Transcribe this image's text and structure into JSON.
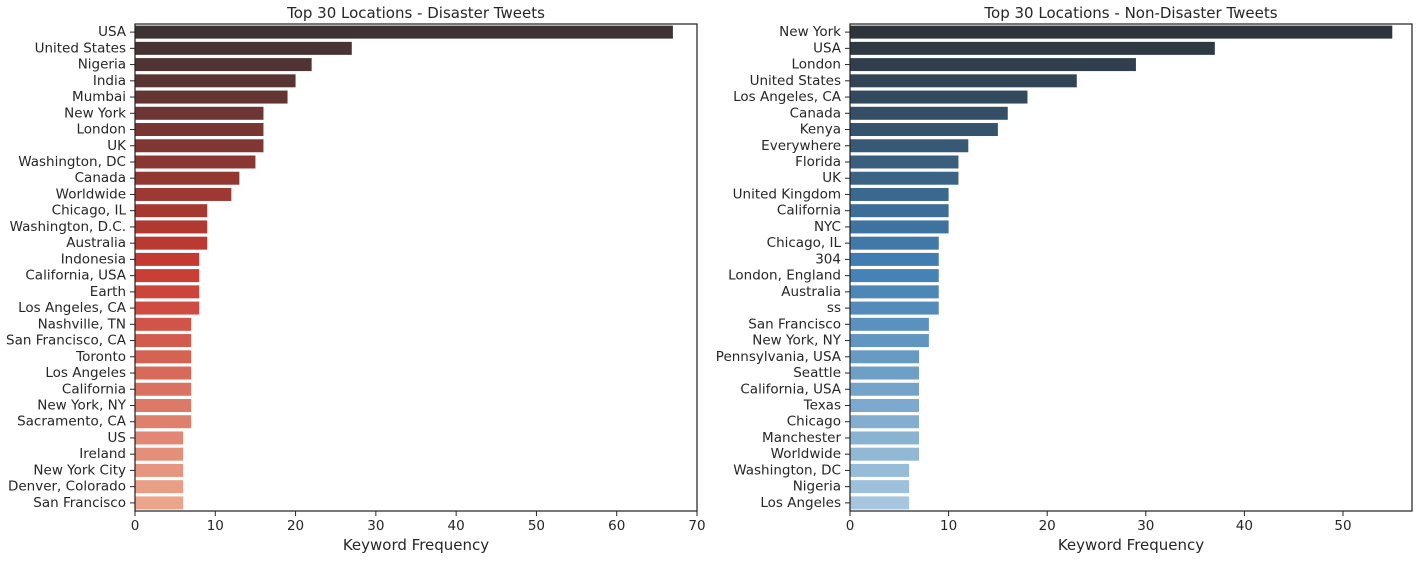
{
  "chart_data": [
    {
      "type": "bar",
      "orientation": "horizontal",
      "title": "Top 30 Locations - Disaster Tweets",
      "xlabel": "Keyword Frequency",
      "ylabel": "",
      "xlim": [
        0,
        70
      ],
      "xticks": [
        0,
        10,
        20,
        30,
        40,
        50,
        60,
        70
      ],
      "grid": false,
      "palette": "reds_dark",
      "categories": [
        "USA",
        "United States",
        "Nigeria",
        "India",
        "Mumbai",
        "New York",
        "London",
        "UK",
        "Washington, DC",
        "Canada",
        "Worldwide",
        "Chicago, IL",
        "Washington, D.C.",
        "Australia",
        "Indonesia",
        "California, USA",
        "Earth",
        "Los Angeles, CA",
        "Nashville, TN",
        "San Francisco, CA",
        "Toronto",
        "Los Angeles",
        "California",
        "New York, NY",
        "Sacramento, CA",
        "US",
        "Ireland",
        "New York City",
        "Denver, Colorado",
        "San Francisco"
      ],
      "values": [
        67,
        27,
        22,
        20,
        19,
        16,
        16,
        16,
        15,
        13,
        12,
        9,
        9,
        9,
        8,
        8,
        8,
        8,
        7,
        7,
        7,
        7,
        7,
        7,
        7,
        6,
        6,
        6,
        6,
        6
      ]
    },
    {
      "type": "bar",
      "orientation": "horizontal",
      "title": "Top 30 Locations - Non-Disaster Tweets",
      "xlabel": "Keyword Frequency",
      "ylabel": "",
      "xlim": [
        0,
        57
      ],
      "xticks": [
        0,
        10,
        20,
        30,
        40,
        50
      ],
      "grid": false,
      "palette": "blues_dark",
      "categories": [
        "New York",
        "USA",
        "London",
        "United States",
        "Los Angeles, CA",
        "Canada",
        "Kenya",
        "Everywhere",
        "Florida",
        "UK",
        "United Kingdom",
        "California",
        "NYC",
        "Chicago, IL",
        "304",
        "London, England",
        "Australia",
        "ss",
        "San Francisco",
        "New York, NY",
        "Pennsylvania, USA",
        "Seattle",
        "California, USA",
        "Texas",
        "Chicago",
        "Manchester",
        "Worldwide",
        "Washington, DC",
        "Nigeria",
        "Los Angeles"
      ],
      "values": [
        55,
        37,
        29,
        23,
        18,
        16,
        15,
        12,
        11,
        11,
        10,
        10,
        10,
        9,
        9,
        9,
        9,
        9,
        8,
        8,
        7,
        7,
        7,
        7,
        7,
        7,
        7,
        6,
        6,
        6
      ]
    }
  ]
}
